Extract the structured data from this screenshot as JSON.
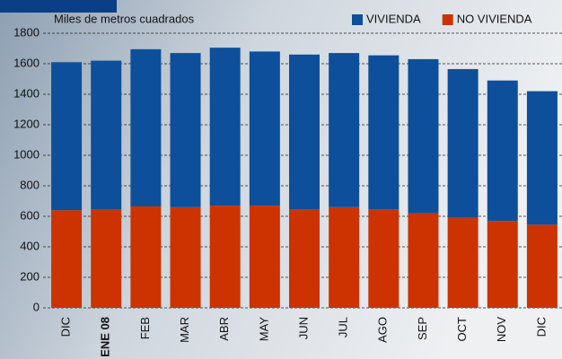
{
  "chart_data": {
    "type": "stacked_bar",
    "y_label": "Miles de metros cuadrados",
    "categories": [
      "DIC",
      "ENE 08",
      "FEB",
      "MAR",
      "ABR",
      "MAY",
      "JUN",
      "JUL",
      "AGO",
      "SEP",
      "OCT",
      "NOV",
      "DIC"
    ],
    "series": [
      {
        "name": "NO VIVIENDA",
        "color": "#cc3300",
        "values": [
          640,
          645,
          665,
          660,
          670,
          670,
          645,
          660,
          645,
          620,
          590,
          570,
          545
        ]
      },
      {
        "name": "VIVIENDA",
        "color": "#0d4f9a",
        "values": [
          970,
          975,
          1030,
          1010,
          1035,
          1010,
          1015,
          1010,
          1010,
          1010,
          975,
          920,
          875
        ]
      }
    ],
    "legend_order": [
      1,
      0
    ],
    "ylim": [
      0,
      1800
    ],
    "yticks": [
      0,
      200,
      400,
      600,
      800,
      1000,
      1200,
      1400,
      1600,
      1800
    ],
    "grid": true
  }
}
